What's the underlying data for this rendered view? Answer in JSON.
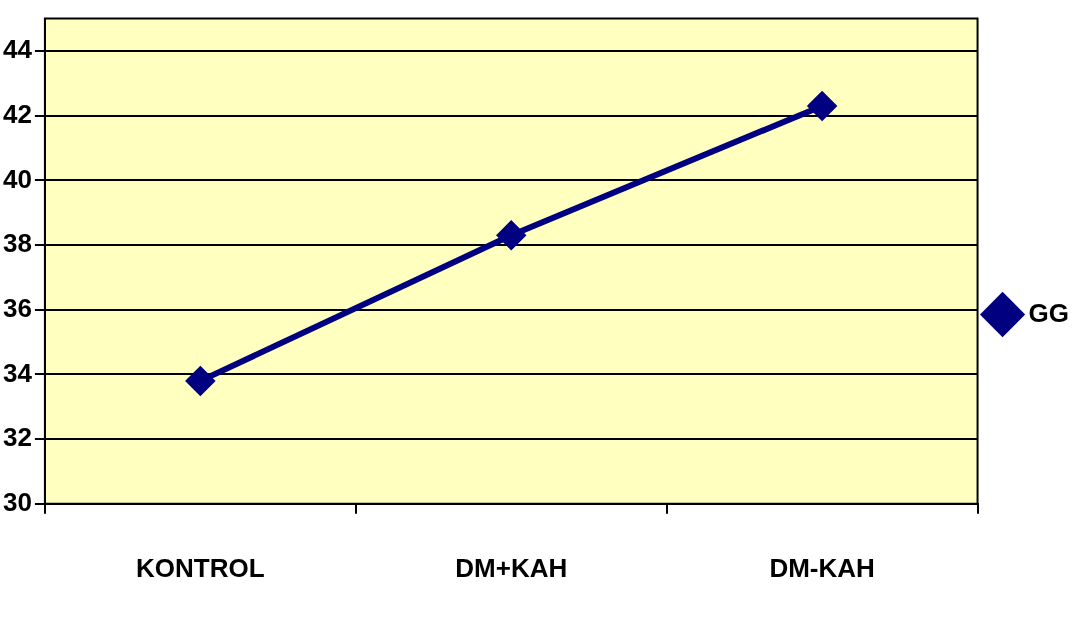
{
  "chart_data": {
    "type": "line",
    "categories": [
      "KONTROL",
      "DM+KAH",
      "DM-KAH"
    ],
    "series": [
      {
        "name": "GG",
        "color": "#000080",
        "values": [
          33.8,
          38.3,
          42.3
        ]
      }
    ],
    "ylim": [
      30,
      45
    ],
    "yticks": [
      30,
      32,
      34,
      36,
      38,
      40,
      42,
      44
    ],
    "grid": "y",
    "legend": "right",
    "marker": "diamond",
    "line_style": "solid"
  }
}
